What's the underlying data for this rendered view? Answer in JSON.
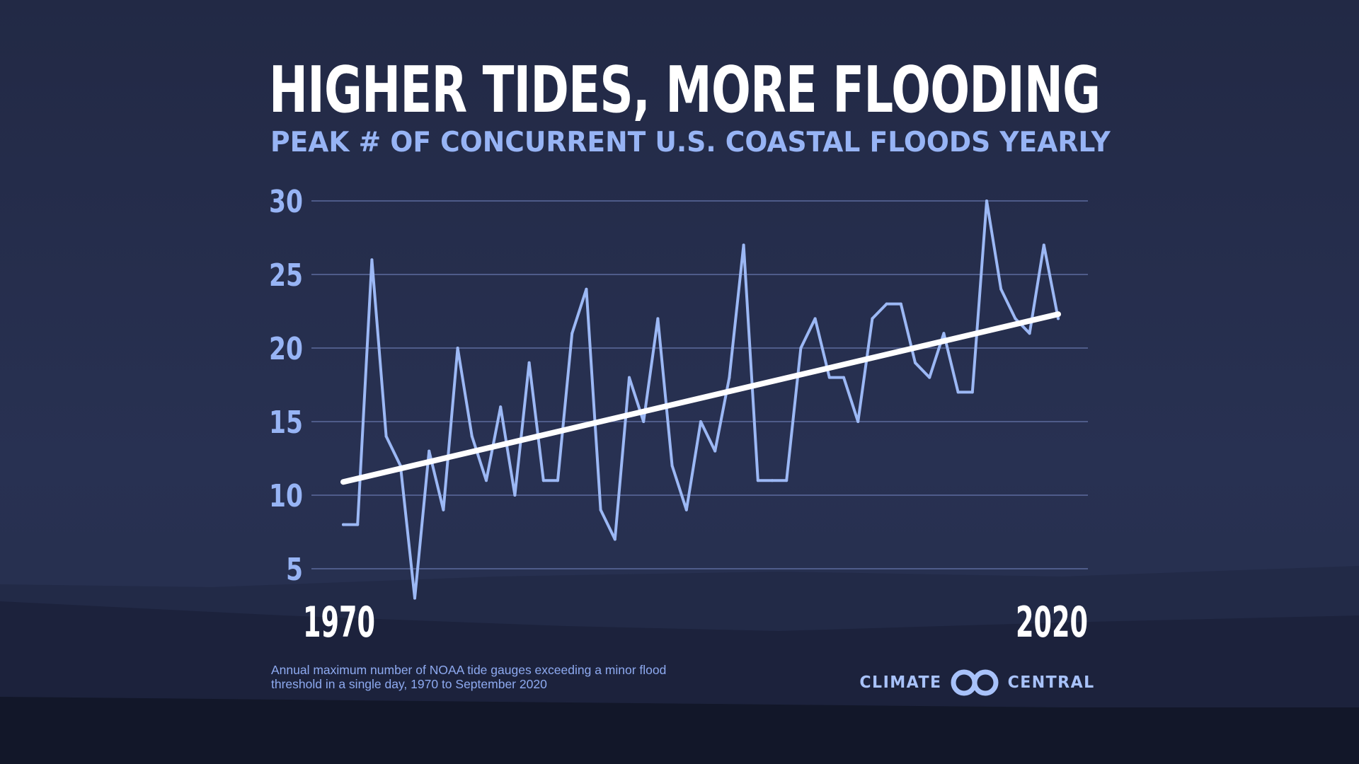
{
  "title": "HIGHER TIDES, MORE FLOODING",
  "subtitle": "PEAK # OF CONCURRENT U.S. COASTAL FLOODS YEARLY",
  "footnote": "Annual maximum number of NOAA tide gauges exceeding a minor flood\nthreshold in a single day, 1970 to September 2020",
  "logo": {
    "left_word": "CLIMATE",
    "right_word": "CENTRAL",
    "icon": "climate-central-rings-icon"
  },
  "colors": {
    "series": "#9cb8f5",
    "trend": "#ffffff",
    "grid": "#5d6b9e",
    "tick_label": "#97b4f5",
    "x_label": "#ffffff"
  },
  "chart_data": {
    "type": "line",
    "title": "HIGHER TIDES, MORE FLOODING",
    "subtitle": "PEAK # OF CONCURRENT U.S. COASTAL FLOODS YEARLY",
    "xlabel": "",
    "ylabel": "",
    "x_range": [
      1970,
      2020
    ],
    "x_tick_labels": [
      "1970",
      "2020"
    ],
    "ylim": [
      5,
      30
    ],
    "y_ticks": [
      5,
      10,
      15,
      20,
      25,
      30
    ],
    "grid": true,
    "legend": "none",
    "series": [
      {
        "x": [
          1970,
          1971,
          1972,
          1973,
          1974,
          1975,
          1976,
          1977,
          1978,
          1979,
          1980,
          1981,
          1982,
          1983,
          1984,
          1985,
          1986,
          1987,
          1988,
          1989,
          1990,
          1991,
          1992,
          1993,
          1994,
          1995,
          1996,
          1997,
          1998,
          1999,
          2000,
          2001,
          2002,
          2003,
          2004,
          2005,
          2006,
          2007,
          2008,
          2009,
          2010,
          2011,
          2012,
          2013,
          2014,
          2015,
          2016,
          2017,
          2018,
          2019,
          2020
        ],
        "values": [
          8,
          8,
          26,
          14,
          12,
          3,
          13,
          9,
          20,
          14,
          11,
          16,
          10,
          19,
          11,
          11,
          21,
          24,
          9,
          7,
          18,
          15,
          22,
          12,
          9,
          15,
          13,
          18,
          27,
          11,
          11,
          11,
          20,
          22,
          18,
          18,
          15,
          22,
          23,
          23,
          19,
          18,
          21,
          17,
          17,
          30,
          24,
          22,
          21,
          27,
          22
        ]
      }
    ],
    "trend_line": {
      "x": [
        1970,
        2020
      ],
      "y": [
        10.9,
        22.3
      ]
    }
  }
}
